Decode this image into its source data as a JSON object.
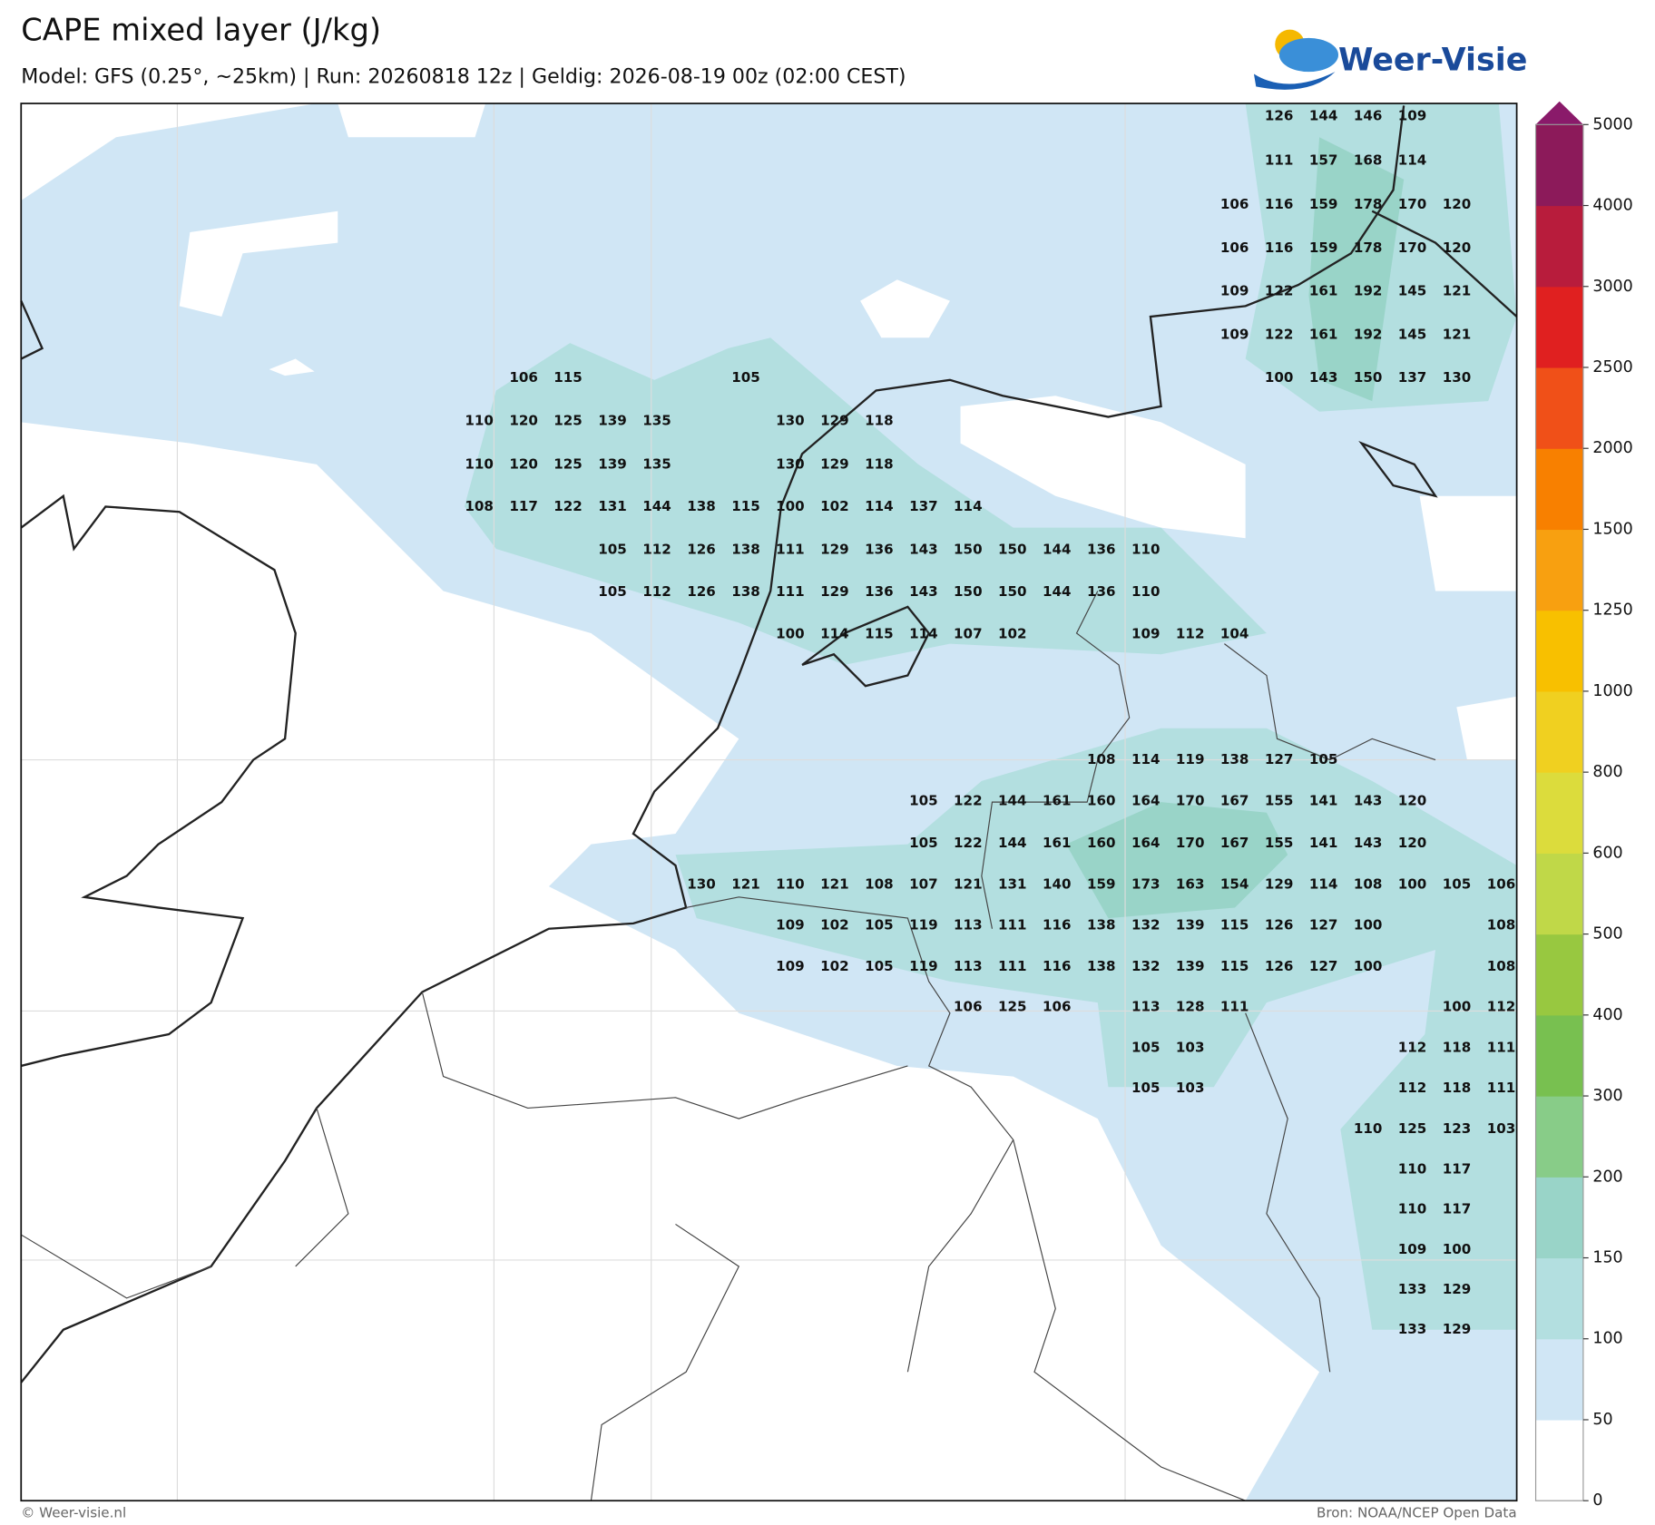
{
  "chart_data": {
    "type": "map",
    "title": "CAPE mixed layer (J/kg)",
    "subtitle": "Model: GFS (0.25°, ~25km)  |  Run: 20260818 12z  |  Geldig: 2026-08-19 00z (02:00 CEST)",
    "logo": "Weer-Visie",
    "footer_left": "© Weer-visie.nl",
    "footer_right": "Bron: NOAA/NCEP Open Data",
    "colorbar": {
      "levels": [
        0,
        50,
        100,
        150,
        200,
        300,
        400,
        500,
        600,
        800,
        1000,
        1250,
        1500,
        2000,
        2500,
        3000,
        4000,
        5000
      ],
      "colors": [
        "#ffffff",
        "#d0e6f5",
        "#b3dfe0",
        "#99d4c8",
        "#88cc88",
        "#78c050",
        "#98c840",
        "#c0d848",
        "#dcdc3c",
        "#f0d020",
        "#f8c000",
        "#f8a010",
        "#f88000",
        "#f05018",
        "#e02020",
        "#b81c3c",
        "#8c1a5a"
      ],
      "extend_color": "#8a1a6a"
    },
    "grid_labels": [
      [
        null,
        null,
        null,
        null,
        null,
        null,
        null,
        null,
        null,
        null,
        null,
        null,
        null,
        null,
        null,
        null,
        null,
        null,
        126,
        144,
        146,
        109,
        null,
        null
      ],
      [
        null,
        null,
        null,
        null,
        null,
        null,
        null,
        null,
        null,
        null,
        null,
        null,
        null,
        null,
        null,
        null,
        null,
        null,
        111,
        157,
        168,
        114,
        null,
        null
      ],
      [
        null,
        null,
        null,
        null,
        null,
        null,
        null,
        null,
        null,
        null,
        null,
        null,
        null,
        null,
        null,
        null,
        null,
        106,
        116,
        159,
        178,
        170,
        120,
        null
      ],
      [
        null,
        null,
        null,
        null,
        null,
        null,
        null,
        null,
        null,
        null,
        null,
        null,
        null,
        null,
        null,
        null,
        null,
        106,
        116,
        159,
        178,
        170,
        120,
        null
      ],
      [
        null,
        null,
        null,
        null,
        null,
        null,
        null,
        null,
        null,
        null,
        null,
        null,
        null,
        null,
        null,
        null,
        null,
        109,
        122,
        161,
        192,
        145,
        121,
        null
      ],
      [
        null,
        null,
        null,
        null,
        null,
        null,
        null,
        null,
        null,
        null,
        null,
        null,
        null,
        null,
        null,
        null,
        null,
        109,
        122,
        161,
        192,
        145,
        121,
        null
      ],
      [
        null,
        106,
        115,
        null,
        null,
        null,
        105,
        null,
        null,
        null,
        null,
        null,
        null,
        null,
        null,
        null,
        null,
        null,
        100,
        143,
        150,
        137,
        130,
        null
      ],
      [
        110,
        120,
        125,
        139,
        135,
        null,
        null,
        130,
        129,
        118,
        null,
        null,
        null,
        null,
        null,
        null,
        null,
        null,
        null,
        null,
        null,
        null,
        null,
        null
      ],
      [
        110,
        120,
        125,
        139,
        135,
        null,
        null,
        130,
        129,
        118,
        null,
        null,
        null,
        null,
        null,
        null,
        null,
        null,
        null,
        null,
        null,
        null,
        null,
        null
      ],
      [
        108,
        117,
        122,
        131,
        144,
        138,
        115,
        100,
        102,
        114,
        137,
        114,
        null,
        null,
        null,
        null,
        null,
        null,
        null,
        null,
        null,
        null,
        null,
        null
      ],
      [
        null,
        null,
        null,
        105,
        112,
        126,
        138,
        111,
        129,
        136,
        143,
        150,
        150,
        144,
        136,
        110,
        null,
        null,
        null,
        null,
        null,
        null,
        null,
        null
      ],
      [
        null,
        null,
        null,
        105,
        112,
        126,
        138,
        111,
        129,
        136,
        143,
        150,
        150,
        144,
        136,
        110,
        null,
        null,
        null,
        null,
        null,
        null,
        null,
        null
      ],
      [
        null,
        null,
        null,
        null,
        null,
        null,
        null,
        100,
        114,
        115,
        114,
        107,
        102,
        null,
        null,
        109,
        112,
        104,
        null,
        null,
        null,
        null,
        null,
        null
      ],
      [
        null,
        null,
        null,
        null,
        null,
        null,
        null,
        null,
        null,
        null,
        null,
        null,
        null,
        null,
        108,
        114,
        119,
        138,
        127,
        105,
        null,
        null,
        null,
        null
      ],
      [
        null,
        null,
        null,
        null,
        null,
        null,
        null,
        null,
        null,
        null,
        105,
        122,
        144,
        161,
        160,
        164,
        170,
        167,
        155,
        141,
        143,
        120,
        null,
        null
      ],
      [
        null,
        null,
        null,
        null,
        null,
        null,
        null,
        null,
        null,
        null,
        105,
        122,
        144,
        161,
        160,
        164,
        170,
        167,
        155,
        141,
        143,
        120,
        null,
        null
      ],
      [
        null,
        null,
        null,
        null,
        null,
        130,
        121,
        110,
        121,
        108,
        107,
        121,
        131,
        140,
        159,
        173,
        163,
        154,
        129,
        114,
        108,
        100,
        105,
        106
      ],
      [
        null,
        null,
        null,
        null,
        null,
        null,
        null,
        109,
        102,
        105,
        119,
        113,
        111,
        116,
        138,
        132,
        139,
        115,
        126,
        127,
        100,
        null,
        null,
        108
      ],
      [
        null,
        null,
        null,
        null,
        null,
        null,
        null,
        109,
        102,
        105,
        119,
        113,
        111,
        116,
        138,
        132,
        139,
        115,
        126,
        127,
        100,
        null,
        null,
        108
      ],
      [
        null,
        null,
        null,
        null,
        null,
        null,
        null,
        null,
        null,
        null,
        null,
        106,
        125,
        106,
        null,
        113,
        128,
        111,
        null,
        null,
        null,
        null,
        100,
        112
      ],
      [
        null,
        null,
        null,
        null,
        null,
        null,
        null,
        null,
        null,
        null,
        null,
        null,
        null,
        null,
        null,
        105,
        103,
        null,
        null,
        null,
        null,
        112,
        118,
        111
      ],
      [
        null,
        null,
        null,
        null,
        null,
        null,
        null,
        null,
        null,
        null,
        null,
        null,
        null,
        null,
        null,
        105,
        103,
        null,
        null,
        null,
        null,
        112,
        118,
        111
      ],
      [
        null,
        null,
        null,
        null,
        null,
        null,
        null,
        null,
        null,
        null,
        null,
        null,
        null,
        null,
        null,
        null,
        null,
        null,
        null,
        null,
        110,
        125,
        123,
        103
      ],
      [
        null,
        null,
        null,
        null,
        null,
        null,
        null,
        null,
        null,
        null,
        null,
        null,
        null,
        null,
        null,
        null,
        null,
        null,
        null,
        null,
        null,
        110,
        117,
        null
      ],
      [
        null,
        null,
        null,
        null,
        null,
        null,
        null,
        null,
        null,
        null,
        null,
        null,
        null,
        null,
        null,
        null,
        null,
        null,
        null,
        null,
        null,
        110,
        117,
        null
      ],
      [
        null,
        null,
        null,
        null,
        null,
        null,
        null,
        null,
        null,
        null,
        null,
        null,
        null,
        null,
        null,
        null,
        null,
        null,
        null,
        null,
        null,
        109,
        100,
        null
      ],
      [
        null,
        null,
        null,
        null,
        null,
        null,
        null,
        null,
        null,
        null,
        null,
        null,
        null,
        null,
        null,
        null,
        null,
        null,
        null,
        null,
        null,
        133,
        129,
        null
      ],
      [
        null,
        null,
        null,
        null,
        null,
        null,
        null,
        null,
        null,
        null,
        null,
        null,
        null,
        null,
        null,
        null,
        null,
        null,
        null,
        null,
        null,
        133,
        129,
        null
      ]
    ]
  }
}
